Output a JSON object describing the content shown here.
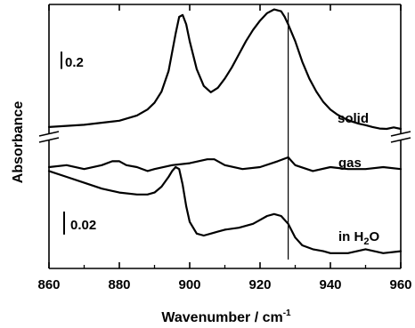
{
  "chart_data": {
    "type": "line",
    "xlabel": "Wavenumber / cm",
    "xlabel_sup": "-1",
    "ylabel": "Absorbance",
    "xlim": [
      860,
      960
    ],
    "x_ticks": [
      860,
      880,
      900,
      920,
      940,
      960
    ],
    "x_tick_labels": [
      "860",
      "880",
      "900",
      "920",
      "940",
      "960"
    ],
    "reference_line_x": 928,
    "axis_break": true,
    "panels": [
      {
        "name": "upper",
        "scale_bar": {
          "label": "0.2",
          "value": 0.2
        }
      },
      {
        "name": "lower",
        "scale_bar": {
          "label": "0.02",
          "value": 0.02
        }
      }
    ],
    "series": [
      {
        "name": "solid",
        "panel": "upper",
        "x": [
          860,
          870,
          880,
          885,
          888,
          890,
          892,
          894,
          896,
          897,
          898,
          899,
          900,
          902,
          904,
          906,
          908,
          910,
          912,
          914,
          916,
          918,
          920,
          922,
          924,
          926,
          927,
          928,
          930,
          932,
          934,
          936,
          938,
          940,
          942,
          944,
          946,
          948,
          950,
          952,
          954,
          956,
          958,
          960
        ],
        "y": [
          0.005,
          0.011,
          0.022,
          0.036,
          0.052,
          0.07,
          0.1,
          0.155,
          0.255,
          0.3,
          0.305,
          0.28,
          0.235,
          0.16,
          0.115,
          0.098,
          0.11,
          0.135,
          0.165,
          0.2,
          0.235,
          0.265,
          0.29,
          0.31,
          0.32,
          0.315,
          0.3,
          0.28,
          0.235,
          0.18,
          0.135,
          0.1,
          0.072,
          0.052,
          0.038,
          0.028,
          0.02,
          0.014,
          0.01,
          0.005,
          0.001,
          0.0,
          0.004,
          0.0
        ]
      },
      {
        "name": "gas",
        "panel": "lower",
        "x": [
          860,
          865,
          870,
          875,
          878,
          880,
          882,
          885,
          888,
          890,
          895,
          900,
          905,
          907,
          910,
          915,
          920,
          925,
          928,
          930,
          935,
          940,
          945,
          950,
          955,
          960
        ],
        "y": [
          0.0,
          0.001,
          -0.001,
          0.001,
          0.003,
          0.003,
          0.001,
          0.0,
          -0.002,
          -0.001,
          0.001,
          0.002,
          0.004,
          0.004,
          0.001,
          -0.001,
          0.0,
          0.003,
          0.005,
          0.001,
          -0.002,
          0.0,
          -0.001,
          -0.001,
          0.0,
          -0.001
        ]
      },
      {
        "name": "in H₂O",
        "panel": "lower",
        "x": [
          860,
          865,
          870,
          875,
          880,
          885,
          888,
          890,
          892,
          894,
          895,
          896,
          897,
          898,
          899,
          900,
          902,
          904,
          906,
          908,
          910,
          914,
          918,
          920,
          922,
          924,
          926,
          928,
          930,
          932,
          935,
          938,
          940,
          945,
          950,
          955,
          960
        ],
        "y": [
          0.043,
          0.04,
          0.037,
          0.034,
          0.032,
          0.031,
          0.031,
          0.032,
          0.035,
          0.04,
          0.043,
          0.045,
          0.044,
          0.036,
          0.025,
          0.017,
          0.011,
          0.01,
          0.011,
          0.012,
          0.013,
          0.014,
          0.016,
          0.018,
          0.02,
          0.021,
          0.02,
          0.016,
          0.009,
          0.005,
          0.003,
          0.002,
          0.001,
          0.001,
          0.003,
          0.001,
          0.002
        ]
      }
    ],
    "annotations": [
      {
        "name": "solid-label",
        "text": "solid"
      },
      {
        "name": "gas-label",
        "text": "gas"
      },
      {
        "name": "in-h2o-label",
        "text": "in H",
        "sub": "2",
        "tail": "O"
      }
    ]
  }
}
